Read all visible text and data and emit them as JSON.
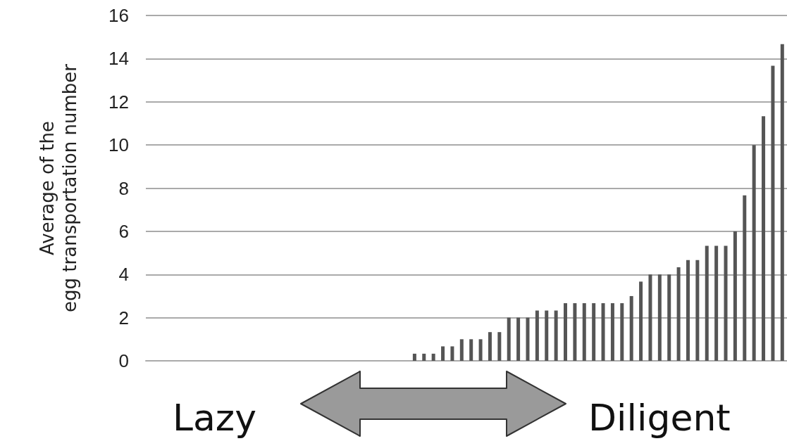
{
  "chart_data": {
    "type": "bar",
    "ylabel": "Average of the\negg transportation number",
    "categories": [
      null,
      null,
      null,
      null,
      null,
      null,
      null,
      null,
      null,
      null,
      null,
      null,
      null,
      null,
      null,
      null,
      null,
      null,
      null,
      null,
      null,
      null,
      null,
      null,
      null,
      null,
      null,
      null,
      null,
      null,
      null,
      null,
      null,
      null,
      null,
      null,
      null,
      null,
      null,
      null,
      null,
      null,
      null,
      null,
      null,
      null,
      null,
      null,
      null,
      null,
      null,
      null,
      null,
      null,
      null,
      null,
      null,
      null,
      null,
      null,
      null,
      null,
      null,
      null,
      null,
      null,
      null,
      null
    ],
    "values": [
      0,
      0,
      0,
      0,
      0,
      0,
      0,
      0,
      0,
      0,
      0,
      0,
      0,
      0,
      0,
      0,
      0,
      0,
      0,
      0,
      0,
      0,
      0,
      0,
      0,
      0,
      0,
      0,
      0.33,
      0.33,
      0.33,
      0.67,
      0.67,
      1,
      1,
      1,
      1.33,
      1.33,
      2,
      2,
      2,
      2.33,
      2.33,
      2.33,
      2.67,
      2.67,
      2.67,
      2.67,
      2.67,
      2.67,
      2.67,
      3,
      3.67,
      4,
      4,
      4,
      4.33,
      4.67,
      4.67,
      5.33,
      5.33,
      5.33,
      6,
      7.67,
      10,
      11.33,
      13.67,
      14.67
    ],
    "color": "#555555",
    "ylim": [
      0,
      16
    ],
    "yticks": [
      0,
      2,
      4,
      6,
      8,
      10,
      12,
      14,
      16
    ],
    "grid": "y",
    "annotations": [
      "Lazy",
      "Diligent"
    ]
  }
}
